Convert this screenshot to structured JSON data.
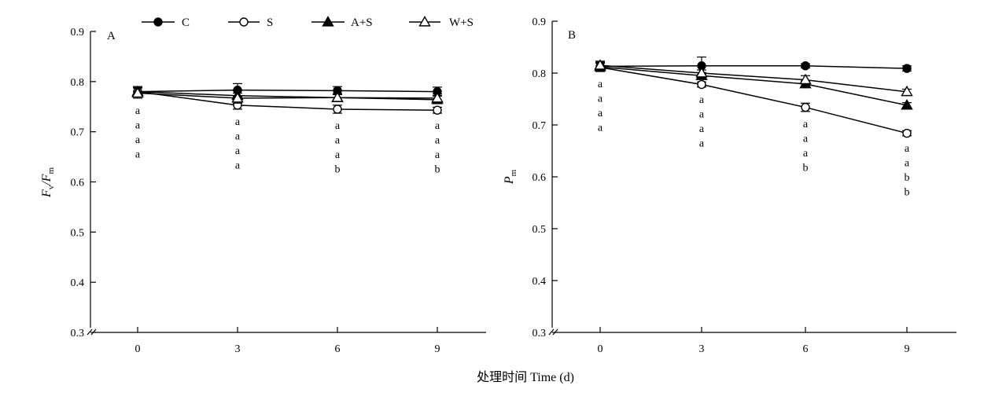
{
  "figure": {
    "xlabel": "处理时间 Time (d)"
  },
  "legend": [
    {
      "label": "C",
      "marker": "filled-circle"
    },
    {
      "label": "S",
      "marker": "open-circle"
    },
    {
      "label": "A+S",
      "marker": "filled-triangle"
    },
    {
      "label": "W+S",
      "marker": "open-triangle"
    }
  ],
  "chart_data": [
    {
      "type": "line",
      "panel": "A",
      "ylabel_main": "F",
      "ylabel_sub": "v",
      "ylabel_sep": "/",
      "ylabel_main2": "F",
      "ylabel_sub2": "m",
      "x": [
        0,
        3,
        6,
        9
      ],
      "xticks": [
        "0",
        "3",
        "6",
        "9"
      ],
      "yticks": [
        "0.3",
        "0.4",
        "0.5",
        "0.6",
        "0.7",
        "0.8",
        "0.9"
      ],
      "ylim": [
        0.3,
        0.9
      ],
      "axis_break": true,
      "series": [
        {
          "name": "C",
          "marker": "filled-circle",
          "values": [
            0.78,
            0.783,
            0.782,
            0.78
          ],
          "errors": [
            0.01,
            0.013,
            0.008,
            0.009
          ]
        },
        {
          "name": "S",
          "marker": "open-circle",
          "values": [
            0.78,
            0.753,
            0.745,
            0.743
          ],
          "errors": [
            0.008,
            0.008,
            0.008,
            0.006
          ]
        },
        {
          "name": "A+S",
          "marker": "filled-triangle",
          "values": [
            0.78,
            0.772,
            0.768,
            0.764
          ],
          "errors": [
            0.01,
            0.01,
            0.008,
            0.008
          ]
        },
        {
          "name": "W+S",
          "marker": "open-triangle",
          "values": [
            0.777,
            0.767,
            0.768,
            0.767
          ],
          "errors": [
            0.01,
            0.01,
            0.008,
            0.008
          ]
        }
      ],
      "significance": [
        [
          "a",
          "a",
          "a",
          "a"
        ],
        [
          "a",
          "a",
          "a",
          "a"
        ],
        [
          "a",
          "a",
          "a",
          "b"
        ],
        [
          "a",
          "a",
          "a",
          "b"
        ]
      ]
    },
    {
      "type": "line",
      "panel": "B",
      "ylabel_main": "P",
      "ylabel_sub": "m",
      "x": [
        0,
        3,
        6,
        9
      ],
      "xticks": [
        "0",
        "3",
        "6",
        "9"
      ],
      "yticks": [
        "0.3",
        "0.4",
        "0.5",
        "0.6",
        "0.7",
        "0.8",
        "0.9"
      ],
      "ylim": [
        0.3,
        0.9
      ],
      "axis_break": true,
      "series": [
        {
          "name": "C",
          "marker": "filled-circle",
          "values": [
            0.813,
            0.814,
            0.814,
            0.809
          ],
          "errors": [
            0.008,
            0.017,
            0.004,
            0.005
          ]
        },
        {
          "name": "S",
          "marker": "open-circle",
          "values": [
            0.811,
            0.778,
            0.734,
            0.684
          ],
          "errors": [
            0.008,
            0.005,
            0.008,
            0.005
          ]
        },
        {
          "name": "A+S",
          "marker": "filled-triangle",
          "values": [
            0.812,
            0.795,
            0.779,
            0.738
          ],
          "errors": [
            0.008,
            0.006,
            0.006,
            0.005
          ]
        },
        {
          "name": "W+S",
          "marker": "open-triangle",
          "values": [
            0.815,
            0.8,
            0.787,
            0.764
          ],
          "errors": [
            0.008,
            0.006,
            0.008,
            0.005
          ]
        }
      ],
      "significance": [
        [
          "a",
          "a",
          "a",
          "a"
        ],
        [
          "a",
          "a",
          "a",
          "a"
        ],
        [
          "a",
          "a",
          "a",
          "b"
        ],
        [
          "a",
          "a",
          "b",
          "b"
        ]
      ]
    }
  ]
}
